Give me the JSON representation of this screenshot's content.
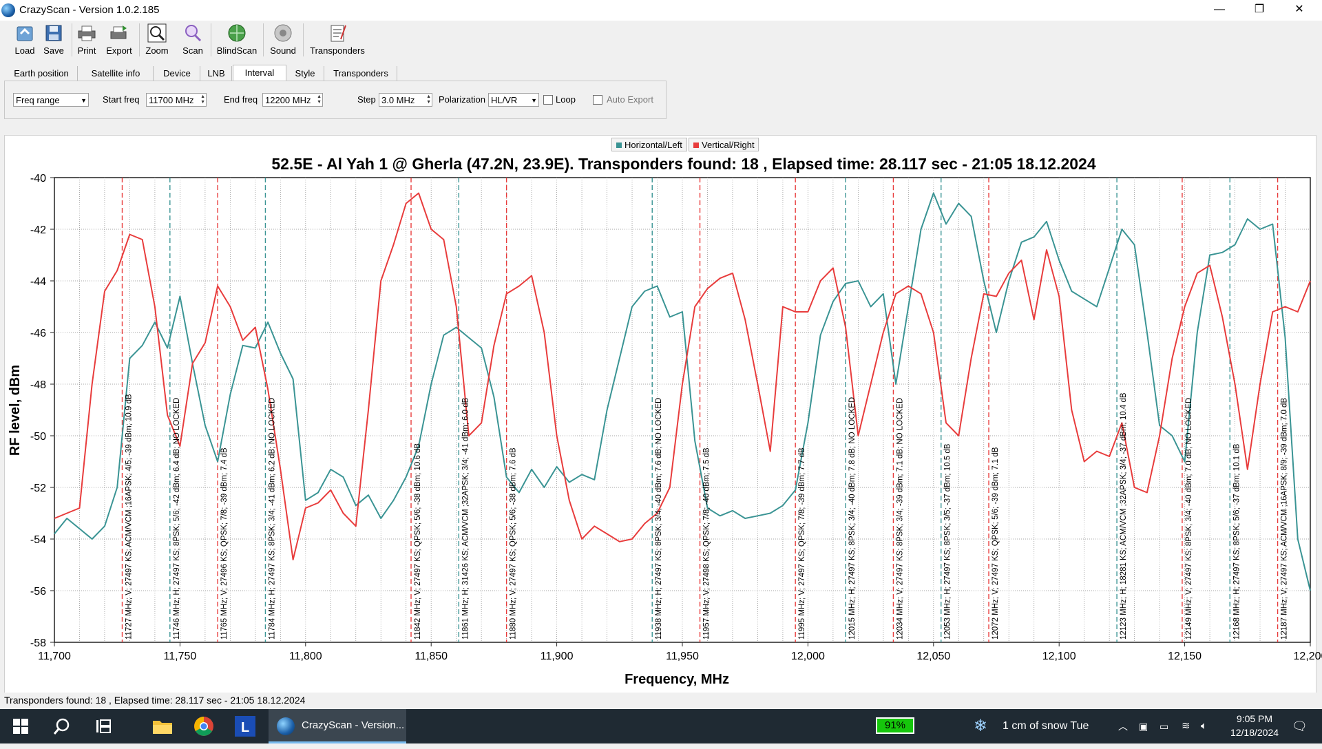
{
  "window": {
    "title": "CrazyScan - Version 1.0.2.185",
    "min": "—",
    "max": "❐",
    "close": "✕"
  },
  "toolbar": [
    {
      "label": "Load"
    },
    {
      "label": "Save"
    },
    {
      "label": "Print"
    },
    {
      "label": "Export"
    },
    {
      "label": "Zoom"
    },
    {
      "label": "Scan"
    },
    {
      "label": "BlindScan"
    },
    {
      "label": "Sound"
    },
    {
      "label": "Transponders"
    }
  ],
  "tabs": [
    "Earth position",
    "Satellite info",
    "Device",
    "LNB",
    "Interval",
    "Style",
    "Transponders"
  ],
  "active_tab": "Interval",
  "controls": {
    "mode": "Freq range",
    "start_label": "Start freq",
    "start_value": "11700 MHz",
    "end_label": "End freq",
    "end_value": "12200 MHz",
    "step_label": "Step",
    "step_value": "3.0 MHz",
    "pol_label": "Polarization",
    "pol_value": "HL/VR",
    "loop_label": "Loop",
    "autoexport_label": "Auto Export"
  },
  "legend": [
    {
      "name": "Horizontal/Left",
      "color": "#3a9494"
    },
    {
      "name": "Vertical/Right",
      "color": "#e83c3c"
    }
  ],
  "chart_data": {
    "type": "line",
    "title": "52.5E - Al Yah 1 @ Gherla (47.2N, 23.9E). Transponders found: 18 , Elapsed time: 28.117 sec - 21:05 18.12.2024",
    "xlabel": "Frequency, MHz",
    "ylabel": "RF level, dBm",
    "xlim": [
      11700,
      12200
    ],
    "ylim": [
      -58,
      -40
    ],
    "x_ticks": [
      "11,700",
      "11,750",
      "11,800",
      "11,850",
      "11,900",
      "11,950",
      "12,000",
      "12,050",
      "12,100",
      "12,150",
      "12,200"
    ],
    "y_ticks": [
      "-40",
      "-42",
      "-44",
      "-46",
      "-48",
      "-50",
      "-52",
      "-54",
      "-56",
      "-58"
    ],
    "grid": true,
    "series": [
      {
        "name": "Horizontal/Left",
        "color": "#3a9494",
        "x": [
          11700,
          11705,
          11710,
          11715,
          11720,
          11725,
          11730,
          11735,
          11740,
          11745,
          11750,
          11755,
          11760,
          11765,
          11770,
          11775,
          11780,
          11785,
          11790,
          11795,
          11800,
          11805,
          11810,
          11815,
          11820,
          11825,
          11830,
          11835,
          11840,
          11845,
          11850,
          11855,
          11860,
          11865,
          11870,
          11875,
          11880,
          11885,
          11890,
          11895,
          11900,
          11905,
          11910,
          11915,
          11920,
          11925,
          11930,
          11935,
          11940,
          11945,
          11950,
          11955,
          11960,
          11965,
          11970,
          11975,
          11980,
          11985,
          11990,
          11995,
          12000,
          12005,
          12010,
          12015,
          12020,
          12025,
          12030,
          12035,
          12040,
          12045,
          12050,
          12055,
          12060,
          12065,
          12070,
          12075,
          12080,
          12085,
          12090,
          12095,
          12100,
          12105,
          12110,
          12115,
          12120,
          12125,
          12130,
          12135,
          12140,
          12145,
          12150,
          12155,
          12160,
          12165,
          12170,
          12175,
          12180,
          12185,
          12190,
          12195,
          12200
        ],
        "y": [
          -53.8,
          -53.2,
          -53.6,
          -54.0,
          -53.5,
          -52.0,
          -47.0,
          -46.5,
          -45.6,
          -46.6,
          -44.6,
          -47.2,
          -49.6,
          -51.0,
          -48.4,
          -46.5,
          -46.6,
          -45.6,
          -46.8,
          -47.8,
          -52.5,
          -52.2,
          -51.3,
          -51.6,
          -52.7,
          -52.3,
          -53.2,
          -52.5,
          -51.6,
          -50.4,
          -48.0,
          -46.1,
          -45.8,
          -46.2,
          -46.6,
          -48.5,
          -51.6,
          -52.2,
          -51.3,
          -52.0,
          -51.2,
          -51.8,
          -51.5,
          -51.7,
          -49.0,
          -47.0,
          -45.0,
          -44.4,
          -44.2,
          -45.4,
          -45.2,
          -50.2,
          -52.8,
          -53.1,
          -52.9,
          -53.2,
          -53.1,
          -53.0,
          -52.7,
          -52.1,
          -49.5,
          -46.1,
          -44.8,
          -44.1,
          -44.0,
          -45.0,
          -44.5,
          -48.0,
          -45.0,
          -42.0,
          -40.6,
          -41.8,
          -41.0,
          -41.5,
          -44.0,
          -46.0,
          -44.0,
          -42.5,
          -42.3,
          -41.7,
          -43.2,
          -44.4,
          -44.7,
          -45.0,
          -43.5,
          -42.0,
          -42.6,
          -46.0,
          -49.6,
          -50.0,
          -51.0,
          -46.0,
          -43.0,
          -42.9,
          -42.6,
          -41.6,
          -42.0,
          -41.8,
          -46.2,
          -54.0,
          -56.0
        ]
      },
      {
        "name": "Vertical/Right",
        "color": "#e83c3c",
        "x": [
          11700,
          11705,
          11710,
          11715,
          11720,
          11725,
          11730,
          11735,
          11740,
          11745,
          11750,
          11755,
          11760,
          11765,
          11770,
          11775,
          11780,
          11785,
          11790,
          11795,
          11800,
          11805,
          11810,
          11815,
          11820,
          11825,
          11830,
          11835,
          11840,
          11845,
          11850,
          11855,
          11860,
          11865,
          11870,
          11875,
          11880,
          11885,
          11890,
          11895,
          11900,
          11905,
          11910,
          11915,
          11920,
          11925,
          11930,
          11935,
          11940,
          11945,
          11950,
          11955,
          11960,
          11965,
          11970,
          11975,
          11980,
          11985,
          11990,
          11995,
          12000,
          12005,
          12010,
          12015,
          12020,
          12025,
          12030,
          12035,
          12040,
          12045,
          12050,
          12055,
          12060,
          12065,
          12070,
          12075,
          12080,
          12085,
          12090,
          12095,
          12100,
          12105,
          12110,
          12115,
          12120,
          12125,
          12130,
          12135,
          12140,
          12145,
          12150,
          12155,
          12160,
          12165,
          12170,
          12175,
          12180,
          12185,
          12190,
          12195,
          12200
        ],
        "y": [
          -53.2,
          -53.0,
          -52.8,
          -48.0,
          -44.4,
          -43.6,
          -42.2,
          -42.4,
          -45.0,
          -49.2,
          -50.4,
          -47.2,
          -46.4,
          -44.2,
          -45.0,
          -46.3,
          -45.8,
          -48.2,
          -51.3,
          -54.8,
          -52.8,
          -52.6,
          -52.1,
          -53.0,
          -53.5,
          -49.0,
          -44.0,
          -42.6,
          -41.0,
          -40.6,
          -42.0,
          -42.4,
          -45.0,
          -50.0,
          -49.5,
          -46.5,
          -44.5,
          -44.2,
          -43.8,
          -46.0,
          -50.0,
          -52.5,
          -54.0,
          -53.5,
          -53.8,
          -54.1,
          -54.0,
          -53.4,
          -53.0,
          -52.0,
          -48.0,
          -45.0,
          -44.3,
          -43.9,
          -43.7,
          -45.5,
          -48.0,
          -50.6,
          -45.0,
          -45.2,
          -45.2,
          -44.0,
          -43.5,
          -45.8,
          -50.0,
          -48.0,
          -46.0,
          -44.5,
          -44.2,
          -44.5,
          -46.0,
          -49.5,
          -50.0,
          -47.0,
          -44.5,
          -44.6,
          -43.7,
          -43.2,
          -45.5,
          -42.8,
          -44.6,
          -49.0,
          -51.0,
          -50.6,
          -50.8,
          -49.5,
          -52.0,
          -52.2,
          -50.0,
          -47.0,
          -45.0,
          -43.7,
          -43.4,
          -45.4,
          -48.0,
          -51.3,
          -48.0,
          -45.2,
          -45.0,
          -45.2,
          -44.0
        ]
      }
    ],
    "transponders": [
      {
        "freq": 11727,
        "pol": "V",
        "label": "11727 MHz; V; 27497 KS; ACM/VCM ;16APSK; 4/5; -39 dBm; 10.9 dB"
      },
      {
        "freq": 11746,
        "pol": "H",
        "label": "11746 MHz; H; 27497 KS; 8PSK; 5/6; -42 dBm; 6.4 dB; NO LOCKED"
      },
      {
        "freq": 11765,
        "pol": "V",
        "label": "11765 MHz; V; 27496 KS; QPSK; 7/8; -39 dBm; 7.4 dB"
      },
      {
        "freq": 11784,
        "pol": "H",
        "label": "11784 MHz; H; 27497 KS; 8PSK; 3/4; -41 dBm; 6.2 dB; NO LOCKED"
      },
      {
        "freq": 11842,
        "pol": "V",
        "label": "11842 MHz; V; 27497 KS; QPSK; 5/6; -38 dBm; 10.6 dB"
      },
      {
        "freq": 11861,
        "pol": "H",
        "label": "11861 MHz; H; 31426 KS; ACM/VCM ;32APSK; 3/4; -41 dBm; 6.0 dB"
      },
      {
        "freq": 11880,
        "pol": "V",
        "label": "11880 MHz; V; 27497 KS; QPSK; 5/6; -38 dBm; 7.6 dB"
      },
      {
        "freq": 11938,
        "pol": "H",
        "label": "11938 MHz; H; 27497 KS; 8PSK; 3/4; -40 dBm; 7.6 dB; NO LOCKED"
      },
      {
        "freq": 11957,
        "pol": "V",
        "label": "11957 MHz; V; 27498 KS; QPSK; 7/8; -40 dBm; 7.5 dB"
      },
      {
        "freq": 11995,
        "pol": "V",
        "label": "11995 MHz; V; 27497 KS; QPSK; 7/8; -39 dBm; 7.7 dB"
      },
      {
        "freq": 12015,
        "pol": "H",
        "label": "12015 MHz; H; 27497 KS; 8PSK; 3/4; -40 dBm; 7.8 dB; NO LOCKED"
      },
      {
        "freq": 12034,
        "pol": "V",
        "label": "12034 MHz; V; 27497 KS; 8PSK; 3/4; -39 dBm; 7.1 dB; NO LOCKED"
      },
      {
        "freq": 12053,
        "pol": "H",
        "label": "12053 MHz; H; 27497 KS; 8PSK; 3/5; -37 dBm; 10.5 dB"
      },
      {
        "freq": 12072,
        "pol": "V",
        "label": "12072 MHz; V; 27497 KS; QPSK; 5/6; -39 dBm; 7.1 dB"
      },
      {
        "freq": 12123,
        "pol": "H",
        "label": "12123 MHz; H; 18281 KS; ACM/VCM ;32APSK; 3/4; -37 dBm; 10.4 dB"
      },
      {
        "freq": 12149,
        "pol": "V",
        "label": "12149 MHz; V; 27497 KS; 8PSK; 3/4; -40 dBm; 7.0 dB; NO LOCKED"
      },
      {
        "freq": 12168,
        "pol": "H",
        "label": "12168 MHz; H; 27497 KS; 8PSK; 5/6; -37 dBm; 10.1 dB"
      },
      {
        "freq": 12187,
        "pol": "V",
        "label": "12187 MHz; V; 27497 KS; ACM/VCM ;16APSK; 8/9; -39 dBm; 7.0 dB"
      }
    ]
  },
  "status": "Transponders found: 18 , Elapsed time: 28.117 sec - 21:05 18.12.2024",
  "taskbar": {
    "app_label": "CrazyScan - Version...",
    "battery": "91%",
    "weather": "1 cm of snow Tue",
    "time": "9:05 PM",
    "date": "12/18/2024"
  }
}
